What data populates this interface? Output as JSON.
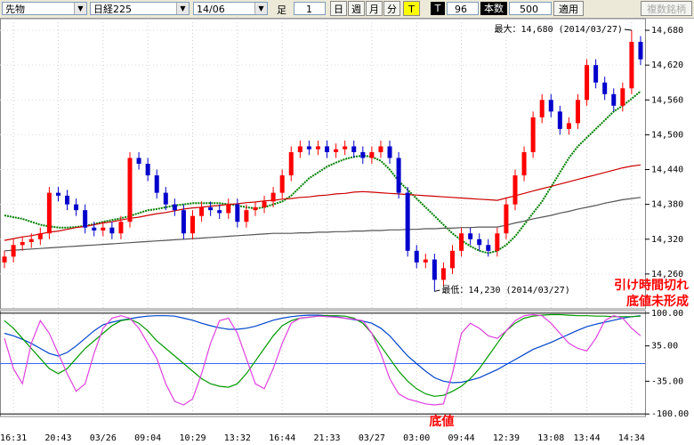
{
  "toolbar": {
    "market": "先物",
    "index": "日経225",
    "contract": "14/06",
    "bar_label": "足",
    "bar_size": 1,
    "buttons": [
      "日",
      "週",
      "月",
      "分",
      "T"
    ],
    "t_label": "T",
    "t_value": 96,
    "count_label": "本数",
    "count_value": 500,
    "apply": "適用",
    "multi": "複数銘柄"
  },
  "chart_data": [
    {
      "type": "candlestick",
      "categories": [
        null,
        "16:31",
        null,
        null,
        null,
        null,
        "20:43",
        null,
        null,
        null,
        null,
        "03/26",
        null,
        null,
        null,
        null,
        "09:04",
        null,
        null,
        null,
        null,
        "10:29",
        null,
        null,
        null,
        null,
        "13:32",
        null,
        null,
        null,
        null,
        "16:44",
        null,
        null,
        null,
        null,
        "21:33",
        null,
        null,
        null,
        null,
        "03/27",
        null,
        null,
        null,
        null,
        "03:00",
        null,
        null,
        null,
        null,
        "09:44",
        null,
        null,
        null,
        null,
        "12:39",
        null,
        null,
        null,
        null,
        "13:08",
        null,
        null,
        null,
        "13:44",
        null,
        null,
        null,
        null,
        "14:34",
        null
      ],
      "open": [
        14280,
        14290,
        14310,
        14315,
        14320,
        14330,
        14400,
        14395,
        14380,
        14370,
        14340,
        14335,
        14340,
        14330,
        14350,
        14460,
        14450,
        14430,
        14400,
        14380,
        14370,
        14330,
        14360,
        14375,
        14370,
        14365,
        14380,
        14350,
        14370,
        14375,
        14385,
        14400,
        14430,
        14470,
        14480,
        14475,
        14480,
        14470,
        14475,
        14480,
        14470,
        14460,
        14470,
        14480,
        14460,
        14400,
        14300,
        14280,
        14285,
        14250,
        14270,
        14300,
        14330,
        14320,
        14310,
        14300,
        14330,
        14380,
        14430,
        14470,
        14530,
        14560,
        14540,
        14510,
        14520,
        14560,
        14620,
        14590,
        14570,
        14550,
        14580,
        14660
      ],
      "high": [
        14300,
        14320,
        14325,
        14330,
        14340,
        14410,
        14410,
        14405,
        14390,
        14380,
        14350,
        14350,
        14350,
        14360,
        14470,
        14470,
        14460,
        14440,
        14410,
        14390,
        14380,
        14370,
        14385,
        14385,
        14380,
        14390,
        14390,
        14380,
        14385,
        14395,
        14410,
        14440,
        14480,
        14490,
        14490,
        14490,
        14490,
        14485,
        14490,
        14490,
        14480,
        14480,
        14490,
        14490,
        14470,
        14410,
        14310,
        14295,
        14295,
        14280,
        14310,
        14340,
        14340,
        14330,
        14320,
        14340,
        14390,
        14440,
        14480,
        14540,
        14570,
        14570,
        14550,
        14530,
        14570,
        14630,
        14630,
        14600,
        14580,
        14590,
        14680,
        14670
      ],
      "low": [
        14270,
        14280,
        14300,
        14305,
        14310,
        14320,
        14385,
        14370,
        14360,
        14330,
        14325,
        14325,
        14320,
        14320,
        14340,
        14440,
        14420,
        14390,
        14370,
        14360,
        14320,
        14320,
        14350,
        14360,
        14355,
        14355,
        14340,
        14340,
        14360,
        14365,
        14375,
        14390,
        14420,
        14460,
        14465,
        14465,
        14460,
        14460,
        14465,
        14460,
        14450,
        14450,
        14460,
        14450,
        14390,
        14290,
        14270,
        14270,
        14230,
        14240,
        14260,
        14290,
        14310,
        14300,
        14290,
        14290,
        14320,
        14370,
        14420,
        14460,
        14520,
        14530,
        14500,
        14500,
        14510,
        14550,
        14580,
        14560,
        14540,
        14540,
        14570,
        14620
      ],
      "close": [
        14290,
        14310,
        14315,
        14320,
        14330,
        14400,
        14395,
        14380,
        14370,
        14340,
        14335,
        14340,
        14330,
        14350,
        14460,
        14450,
        14430,
        14400,
        14380,
        14370,
        14330,
        14360,
        14375,
        14370,
        14365,
        14380,
        14350,
        14370,
        14375,
        14385,
        14400,
        14430,
        14470,
        14480,
        14475,
        14480,
        14470,
        14475,
        14480,
        14470,
        14460,
        14470,
        14480,
        14460,
        14400,
        14300,
        14280,
        14285,
        14250,
        14270,
        14300,
        14330,
        14320,
        14310,
        14300,
        14330,
        14380,
        14430,
        14470,
        14530,
        14560,
        14540,
        14510,
        14520,
        14560,
        14620,
        14590,
        14570,
        14550,
        14580,
        14660,
        14630
      ],
      "up_color": "#ff0000",
      "down_color": "#0000cc",
      "series": [
        {
          "color": "#008000",
          "dashed": true,
          "values": [
            14361,
            14358,
            14355,
            14350,
            14345,
            14342,
            14340,
            14340,
            14341,
            14343,
            14346,
            14350,
            14353,
            14356,
            14360,
            14365,
            14370,
            14372,
            14375,
            14378,
            14380,
            14382,
            14382,
            14382,
            14382,
            14380,
            14378,
            14375,
            14373,
            14375,
            14380,
            14385,
            14395,
            14410,
            14425,
            14435,
            14445,
            14452,
            14458,
            14462,
            14464,
            14462,
            14455,
            14440,
            14420,
            14405,
            14390,
            14375,
            14360,
            14345,
            14330,
            14318,
            14308,
            14300,
            14296,
            14300,
            14310,
            14325,
            14345,
            14365,
            14385,
            14410,
            14435,
            14460,
            14480,
            14495,
            14510,
            14525,
            14540,
            14550,
            14562,
            14575
          ]
        },
        {
          "color": "#cc0000",
          "dashed": false,
          "values": [
            14318,
            14321,
            14324,
            14326,
            14329,
            14332,
            14334,
            14337,
            14340,
            14342,
            14345,
            14348,
            14350,
            14353,
            14356,
            14358,
            14361,
            14364,
            14366,
            14369,
            14372,
            14374,
            14375,
            14377,
            14378,
            14380,
            14381,
            14383,
            14384,
            14386,
            14387,
            14389,
            14390,
            14392,
            14393,
            14395,
            14396,
            14398,
            14399,
            14401,
            14402,
            14401,
            14400,
            14399,
            14398,
            14397,
            14396,
            14395,
            14394,
            14393,
            14392,
            14391,
            14390,
            14389,
            14388,
            14387,
            14391,
            14395,
            14399,
            14403,
            14407,
            14411,
            14415,
            14419,
            14423,
            14427,
            14431,
            14435,
            14439,
            14443,
            14446,
            14448
          ]
        },
        {
          "color": "#555555",
          "dashed": false,
          "values": [
            14300,
            14301,
            14302,
            14303,
            14304,
            14305,
            14306,
            14307,
            14308,
            14309,
            14310,
            14311,
            14312,
            14313,
            14314,
            14315,
            14316,
            14317,
            14318,
            14319,
            14320,
            14321,
            14322,
            14323,
            14324,
            14325,
            14326,
            14327,
            14328,
            14329,
            14330,
            14330,
            14330,
            14331,
            14331,
            14332,
            14332,
            14333,
            14333,
            14334,
            14334,
            14335,
            14335,
            14336,
            14336,
            14337,
            14337,
            14338,
            14338,
            14339,
            14339,
            14340,
            14340,
            14341,
            14341,
            14341,
            14344,
            14348,
            14351,
            14355,
            14358,
            14361,
            14365,
            14368,
            14372,
            14375,
            14378,
            14382,
            14385,
            14388,
            14390,
            14392
          ]
        }
      ],
      "ylim": [
        14200,
        14700
      ],
      "yticks": [
        {
          "value": 14260,
          "label": "14,260"
        },
        {
          "value": 14320,
          "label": "14,320"
        },
        {
          "value": 14380,
          "label": "14,380"
        },
        {
          "value": 14440,
          "label": "14,440"
        },
        {
          "value": 14500,
          "label": "14,500"
        },
        {
          "value": 14560,
          "label": "14,560"
        },
        {
          "value": 14620,
          "label": "14,620"
        },
        {
          "value": 14680,
          "label": "14,680"
        }
      ],
      "grid": true,
      "annotations": {
        "max": "最大：14,680 (2014/03/27)",
        "min": "最低：14,230 (2014/03/27)",
        "note": [
          "引け時間切れ",
          "底値未形成"
        ]
      }
    },
    {
      "type": "line",
      "series": [
        {
          "color": "#0044cc",
          "values": [
            60,
            55,
            48,
            40,
            30,
            20,
            15,
            22,
            35,
            50,
            65,
            77,
            82,
            86,
            89,
            92,
            94,
            95,
            95,
            94,
            90,
            86,
            80,
            75,
            71,
            68,
            68,
            70,
            74,
            80,
            86,
            90,
            93,
            95,
            96,
            96,
            95,
            93,
            90,
            87,
            84,
            80,
            70,
            55,
            35,
            15,
            0,
            -15,
            -28,
            -35,
            -38,
            -37,
            -33,
            -28,
            -20,
            -12,
            -2,
            8,
            18,
            28,
            35,
            42,
            50,
            58,
            66,
            73,
            78,
            82,
            86,
            90,
            93,
            95
          ]
        },
        {
          "color": "#009900",
          "values": [
            85,
            70,
            50,
            30,
            10,
            -10,
            -20,
            -10,
            10,
            30,
            45,
            60,
            75,
            85,
            88,
            80,
            65,
            45,
            30,
            15,
            0,
            -15,
            -30,
            -40,
            -45,
            -47,
            -40,
            -20,
            5,
            30,
            55,
            75,
            85,
            90,
            92,
            94,
            95,
            95,
            94,
            90,
            80,
            60,
            35,
            10,
            -15,
            -35,
            -50,
            -60,
            -65,
            -63,
            -55,
            -45,
            -30,
            -10,
            15,
            40,
            65,
            80,
            90,
            94,
            96,
            97,
            97,
            96,
            95,
            95,
            94,
            94,
            93,
            93,
            93,
            94
          ]
        },
        {
          "color": "#e040e0",
          "values": [
            50,
            -10,
            -40,
            40,
            85,
            60,
            20,
            -20,
            -55,
            -40,
            20,
            70,
            90,
            95,
            90,
            70,
            40,
            10,
            -40,
            -75,
            -82,
            -70,
            -20,
            40,
            85,
            90,
            60,
            10,
            -40,
            -50,
            -10,
            40,
            80,
            90,
            92,
            94,
            93,
            92,
            90,
            88,
            85,
            60,
            20,
            -30,
            -60,
            -70,
            -75,
            -80,
            -82,
            -80,
            -20,
            60,
            80,
            70,
            55,
            50,
            65,
            85,
            95,
            97,
            95,
            80,
            60,
            40,
            30,
            25,
            50,
            85,
            95,
            90,
            70,
            55
          ]
        }
      ],
      "ylim": [
        -105,
        105
      ],
      "yticks": [
        {
          "value": 100,
          "label": "100.00"
        },
        {
          "value": 35,
          "label": "35.00"
        },
        {
          "value": -35,
          "label": "-35.00"
        },
        {
          "value": -100,
          "label": "-100.00"
        }
      ],
      "annotation": "底値"
    }
  ]
}
